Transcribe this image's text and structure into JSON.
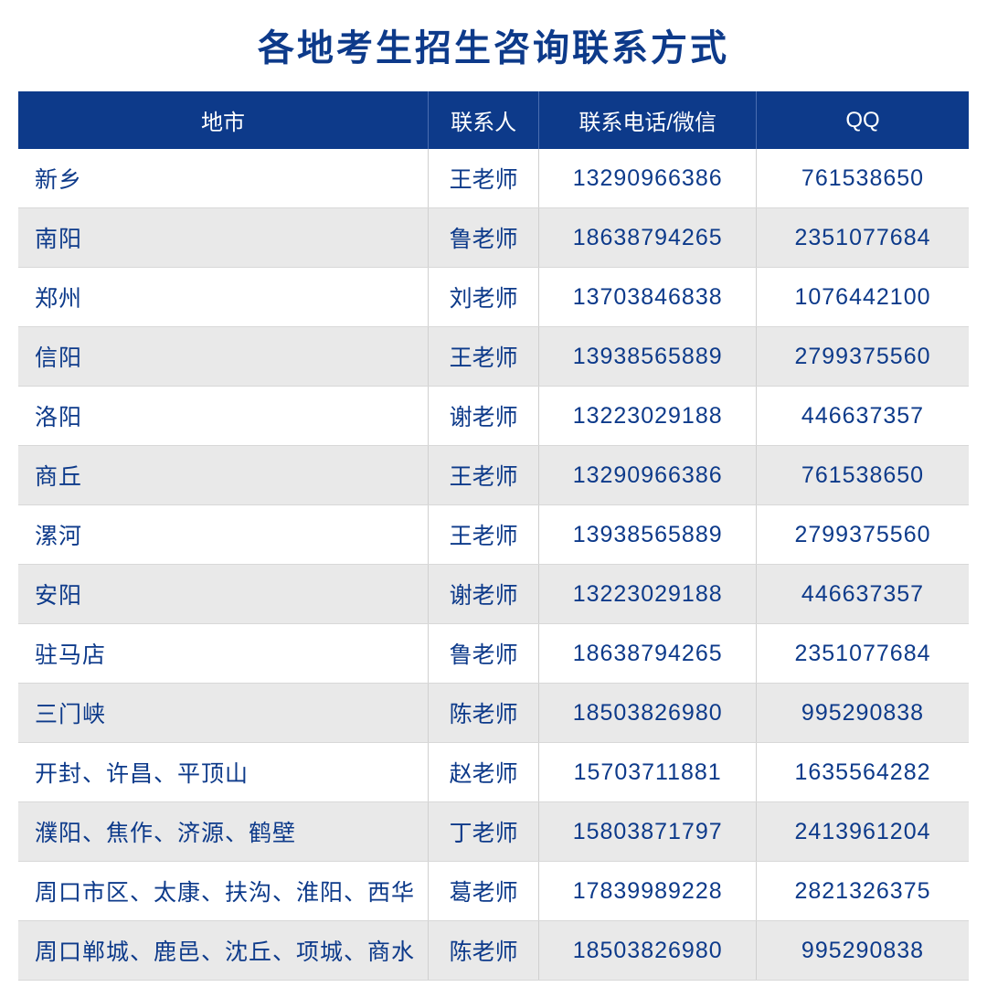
{
  "title": "各地考生招生咨询联系方式",
  "columns": {
    "city": "地市",
    "contact": "联系人",
    "phone": "联系电话/微信",
    "qq": "QQ"
  },
  "rows": [
    {
      "city": "新乡",
      "contact": "王老师",
      "phone": "13290966386",
      "qq": "761538650"
    },
    {
      "city": "南阳",
      "contact": "鲁老师",
      "phone": "18638794265",
      "qq": "2351077684"
    },
    {
      "city": "郑州",
      "contact": "刘老师",
      "phone": "13703846838",
      "qq": "1076442100"
    },
    {
      "city": "信阳",
      "contact": "王老师",
      "phone": "13938565889",
      "qq": "2799375560"
    },
    {
      "city": "洛阳",
      "contact": "谢老师",
      "phone": "13223029188",
      "qq": "446637357"
    },
    {
      "city": "商丘",
      "contact": "王老师",
      "phone": "13290966386",
      "qq": "761538650"
    },
    {
      "city": "漯河",
      "contact": "王老师",
      "phone": "13938565889",
      "qq": "2799375560"
    },
    {
      "city": "安阳",
      "contact": "谢老师",
      "phone": "13223029188",
      "qq": "446637357"
    },
    {
      "city": "驻马店",
      "contact": "鲁老师",
      "phone": "18638794265",
      "qq": "2351077684"
    },
    {
      "city": "三门峡",
      "contact": "陈老师",
      "phone": "18503826980",
      "qq": "995290838"
    },
    {
      "city": "开封、许昌、平顶山",
      "contact": "赵老师",
      "phone": "15703711881",
      "qq": "1635564282"
    },
    {
      "city": "濮阳、焦作、济源、鹤壁",
      "contact": "丁老师",
      "phone": "15803871797",
      "qq": "2413961204"
    },
    {
      "city": "周口市区、太康、扶沟、淮阳、西华",
      "contact": "葛老师",
      "phone": "17839989228",
      "qq": "2821326375"
    },
    {
      "city": "周口郸城、鹿邑、沈丘、项城、商水",
      "contact": "陈老师",
      "phone": "18503826980",
      "qq": "995290838"
    }
  ],
  "styling": {
    "header_bg": "#0d3a8a",
    "header_text_color": "#ffffff",
    "row_odd_bg": "#ffffff",
    "row_even_bg": "#e9e9e9",
    "cell_text_color": "#0d3a8a",
    "title_color": "#0d3a8a",
    "title_fontsize": 40,
    "header_fontsize": 24,
    "cell_fontsize": 25,
    "border_color": "#d0d0d0",
    "column_widths": {
      "city": 390,
      "contact": 130,
      "phone": 260,
      "qq": 260
    }
  }
}
